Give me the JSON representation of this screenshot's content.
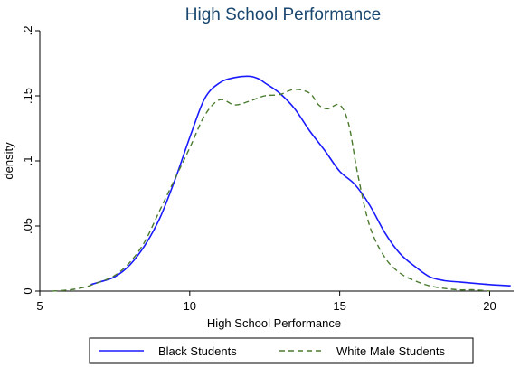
{
  "chart_data": {
    "type": "line",
    "title": "High School Performance",
    "xlabel": "High School Performance",
    "ylabel": "density",
    "xlim": [
      5,
      20.8
    ],
    "ylim": [
      0,
      0.2
    ],
    "xticks": [
      "5",
      "10",
      "15",
      "20"
    ],
    "xtick_values": [
      5,
      10,
      15,
      20
    ],
    "yticks": [
      "0",
      ".05",
      ".1",
      ".15",
      ".2"
    ],
    "ytick_values": [
      0,
      0.05,
      0.1,
      0.15,
      0.2
    ],
    "grid": false,
    "legend": "bottom",
    "series": [
      {
        "name": "Black Students",
        "color": "#1a1aff",
        "style": "solid",
        "x": [
          6.7,
          7.0,
          7.5,
          8.0,
          8.5,
          9.0,
          9.5,
          10.0,
          10.5,
          11.0,
          11.5,
          12.0,
          12.3,
          12.5,
          13.0,
          13.5,
          14.0,
          14.5,
          15.0,
          15.5,
          16.0,
          16.5,
          17.0,
          17.5,
          18.0,
          18.5,
          19.0,
          19.5,
          20.0,
          20.7
        ],
        "y": [
          0.005,
          0.007,
          0.011,
          0.02,
          0.035,
          0.056,
          0.085,
          0.118,
          0.148,
          0.16,
          0.164,
          0.165,
          0.163,
          0.16,
          0.152,
          0.14,
          0.123,
          0.108,
          0.092,
          0.082,
          0.066,
          0.045,
          0.029,
          0.019,
          0.011,
          0.008,
          0.007,
          0.006,
          0.005,
          0.004
        ]
      },
      {
        "name": "White Male Students",
        "color": "#4a7a2e",
        "style": "dashed",
        "x": [
          5.4,
          6.0,
          6.5,
          7.0,
          7.5,
          8.0,
          8.5,
          9.0,
          9.5,
          10.0,
          10.5,
          11.0,
          11.5,
          12.0,
          12.5,
          13.0,
          13.5,
          14.0,
          14.3,
          14.6,
          15.0,
          15.3,
          15.6,
          16.0,
          16.5,
          17.0,
          17.5,
          18.0,
          18.5,
          19.0,
          19.5,
          20.0
        ],
        "y": [
          0.0,
          0.001,
          0.003,
          0.007,
          0.012,
          0.022,
          0.038,
          0.062,
          0.086,
          0.11,
          0.135,
          0.147,
          0.143,
          0.146,
          0.15,
          0.151,
          0.155,
          0.152,
          0.143,
          0.14,
          0.143,
          0.128,
          0.09,
          0.05,
          0.026,
          0.014,
          0.008,
          0.004,
          0.002,
          0.001,
          0.001,
          0.0
        ]
      }
    ]
  }
}
